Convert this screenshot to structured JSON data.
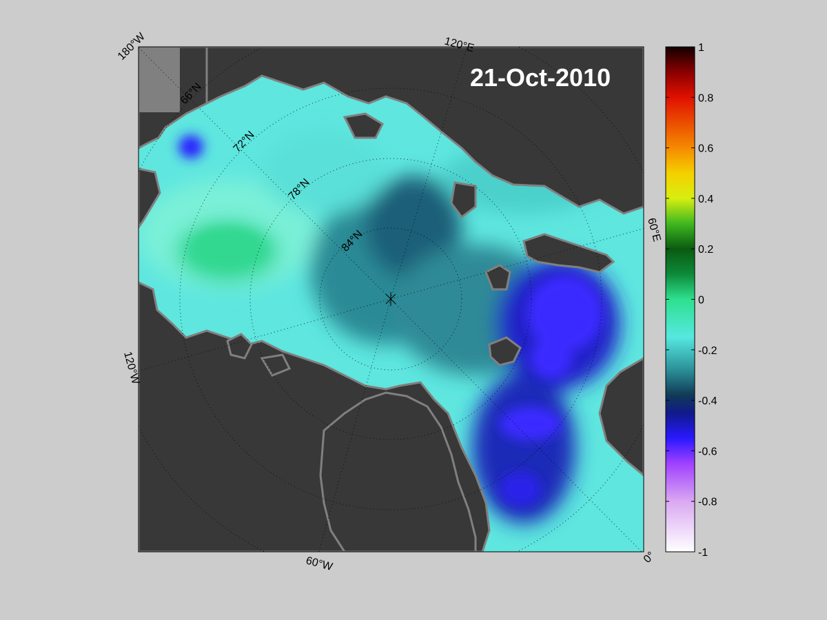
{
  "map": {
    "date": "21-Oct-2010",
    "longitude_labels": [
      "180°W",
      "120°E",
      "60°E",
      "0°",
      "60°W",
      "120°W"
    ],
    "latitude_labels": [
      "66°N",
      "72°N",
      "78°N",
      "84°N"
    ],
    "colors": {
      "land": "#383838",
      "land_edge": "#808080",
      "background": "#cccccc"
    }
  },
  "colorbar": {
    "ticks": [
      "1",
      "0.8",
      "0.6",
      "0.4",
      "0.2",
      "0",
      "-0.2",
      "-0.4",
      "-0.6",
      "-0.8",
      "-1"
    ],
    "range": [
      -1,
      1
    ],
    "stops": [
      {
        "value": -1.0,
        "color": "#ffffff"
      },
      {
        "value": -0.8,
        "color": "#d9a8f2"
      },
      {
        "value": -0.65,
        "color": "#a040ff"
      },
      {
        "value": -0.55,
        "color": "#2a18ff"
      },
      {
        "value": -0.45,
        "color": "#0f1a8a"
      },
      {
        "value": -0.38,
        "color": "#103a55"
      },
      {
        "value": -0.28,
        "color": "#2b8f98"
      },
      {
        "value": -0.15,
        "color": "#55e8e0"
      },
      {
        "value": 0.0,
        "color": "#2ee08e"
      },
      {
        "value": 0.1,
        "color": "#0d8a3a"
      },
      {
        "value": 0.2,
        "color": "#0a5a10"
      },
      {
        "value": 0.3,
        "color": "#3fb820"
      },
      {
        "value": 0.4,
        "color": "#d8ee10"
      },
      {
        "value": 0.5,
        "color": "#f5d000"
      },
      {
        "value": 0.6,
        "color": "#f58a00"
      },
      {
        "value": 0.8,
        "color": "#e01000"
      },
      {
        "value": 0.9,
        "color": "#8a0000"
      },
      {
        "value": 1.0,
        "color": "#120000"
      }
    ]
  }
}
